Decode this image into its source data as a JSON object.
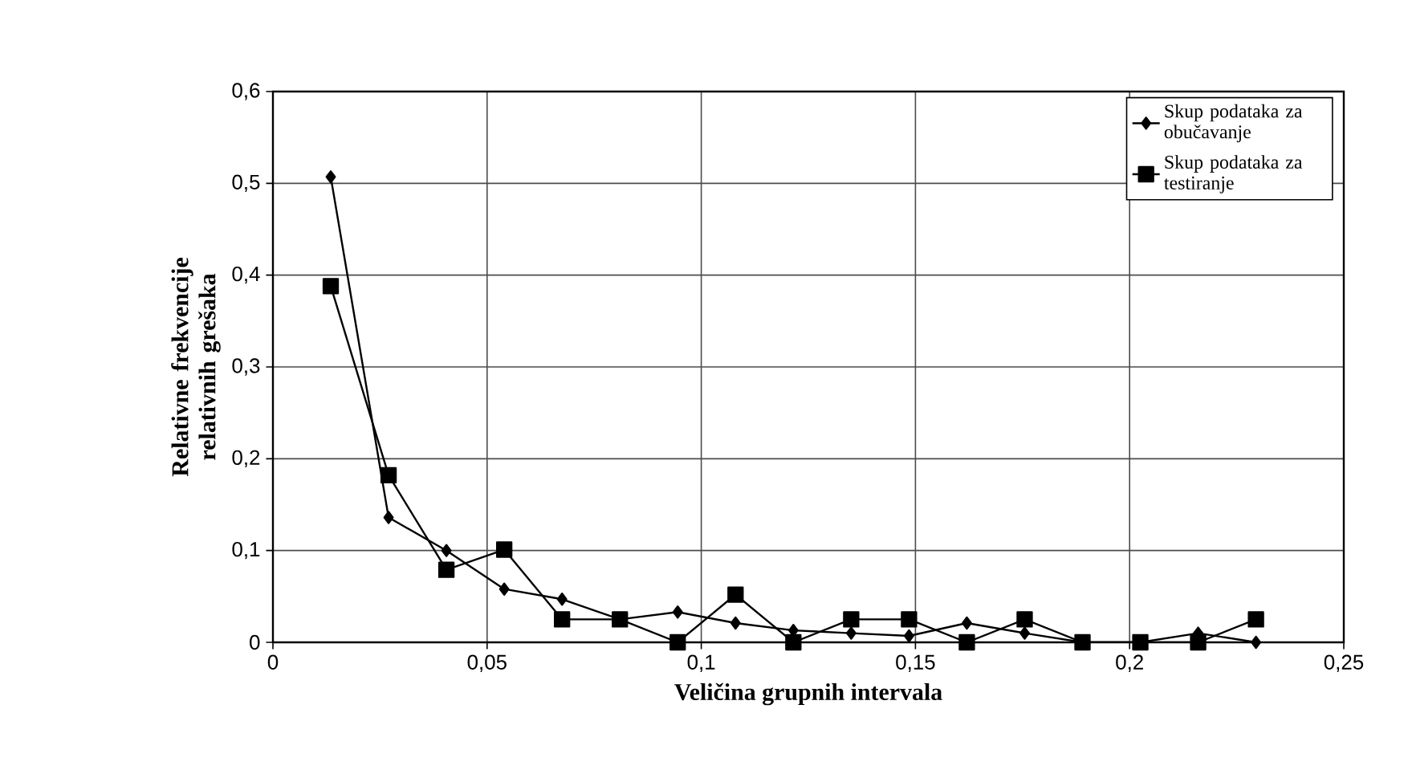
{
  "chart_data": {
    "type": "line",
    "xlabel": "Veličina grupnih intervala",
    "ylabel": "Relativne frekvencije relativnih grešaka",
    "x": [
      0.0135,
      0.027,
      0.0405,
      0.054,
      0.0675,
      0.081,
      0.0945,
      0.108,
      0.1215,
      0.135,
      0.1485,
      0.162,
      0.1755,
      0.189,
      0.2025,
      0.216,
      0.2295
    ],
    "series": [
      {
        "name": "Skup podataka za obučavanje",
        "color": "#000000",
        "marker": "diamond",
        "values": [
          0.507,
          0.136,
          0.1,
          0.058,
          0.047,
          0.025,
          0.033,
          0.021,
          0.013,
          0.01,
          0.007,
          0.021,
          0.01,
          0,
          0,
          0.01,
          0
        ]
      },
      {
        "name": "Skup podataka za testiranje",
        "color": "#000000",
        "marker": "square",
        "values": [
          0.388,
          0.182,
          0.079,
          0.101,
          0.025,
          0.025,
          0,
          0.052,
          0,
          0.025,
          0.025,
          0,
          0.025,
          0,
          0,
          0,
          0.025
        ]
      }
    ],
    "xlim": [
      0,
      0.25
    ],
    "xticks": [
      {
        "value": 0,
        "label": "0"
      },
      {
        "value": 0.05,
        "label": "0,05"
      },
      {
        "value": 0.1,
        "label": "0,1"
      },
      {
        "value": 0.15,
        "label": "0,15"
      },
      {
        "value": 0.2,
        "label": "0,2"
      },
      {
        "value": 0.25,
        "label": "0,25"
      }
    ],
    "ylim": [
      0,
      0.6
    ],
    "yticks": [
      {
        "value": 0,
        "label": "0"
      },
      {
        "value": 0.1,
        "label": "0,1"
      },
      {
        "value": 0.2,
        "label": "0,2"
      },
      {
        "value": 0.3,
        "label": "0,3"
      },
      {
        "value": 0.4,
        "label": "0,4"
      },
      {
        "value": 0.5,
        "label": "0,5"
      },
      {
        "value": 0.6,
        "label": "0,6"
      }
    ],
    "grid": true,
    "legend": "top right",
    "line_style": "solid"
  }
}
